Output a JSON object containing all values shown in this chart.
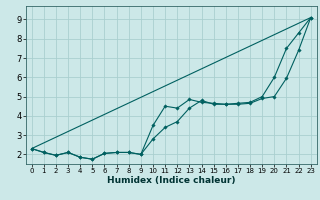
{
  "xlabel": "Humidex (Indice chaleur)",
  "background_color": "#cce8e8",
  "grid_color": "#aacfcf",
  "line_color": "#006060",
  "xlim": [
    -0.5,
    23.5
  ],
  "ylim": [
    1.5,
    9.7
  ],
  "xticks": [
    0,
    1,
    2,
    3,
    4,
    5,
    6,
    7,
    8,
    9,
    10,
    11,
    12,
    13,
    14,
    15,
    16,
    17,
    18,
    19,
    20,
    21,
    22,
    23
  ],
  "yticks": [
    2,
    3,
    4,
    5,
    6,
    7,
    8,
    9
  ],
  "curve1_x": [
    0,
    1,
    2,
    3,
    4,
    5,
    6,
    7,
    8,
    9,
    10,
    11,
    12,
    13,
    14,
    15,
    16,
    17,
    18,
    19,
    20,
    21,
    22,
    23
  ],
  "curve1_y": [
    2.3,
    2.1,
    1.95,
    2.1,
    1.85,
    1.75,
    2.05,
    2.1,
    2.1,
    2.0,
    2.8,
    3.4,
    3.7,
    4.4,
    4.8,
    4.6,
    4.6,
    4.6,
    4.65,
    4.9,
    5.0,
    5.95,
    7.4,
    9.1
  ],
  "curve2_x": [
    0,
    1,
    2,
    3,
    4,
    5,
    6,
    7,
    8,
    9,
    10,
    11,
    12,
    13,
    14,
    15,
    16,
    17,
    18,
    19,
    20,
    21,
    22,
    23
  ],
  "curve2_y": [
    2.3,
    2.1,
    1.95,
    2.1,
    1.85,
    1.75,
    2.05,
    2.1,
    2.1,
    2.0,
    3.5,
    4.5,
    4.4,
    4.85,
    4.7,
    4.65,
    4.6,
    4.65,
    4.7,
    5.0,
    6.0,
    7.5,
    8.3,
    9.1
  ],
  "curve3_x": [
    0,
    23
  ],
  "curve3_y": [
    2.3,
    9.1
  ]
}
